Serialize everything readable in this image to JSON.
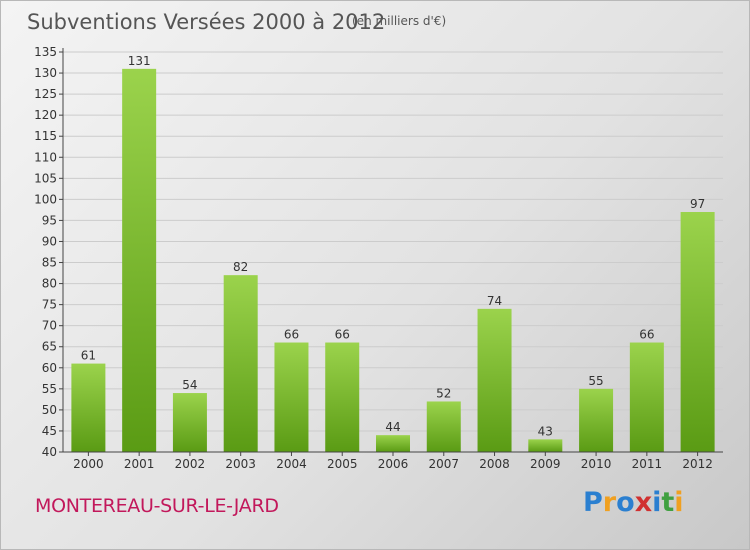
{
  "title": "Subventions Versées 2000 à 2012",
  "unit_note": "(en milliers d'€)",
  "commune": "MONTEREAU-SUR-LE-JARD",
  "logo": {
    "letters": [
      "P",
      "r",
      "o",
      "x",
      "i",
      "t",
      "i"
    ],
    "colors": [
      "#2a7fd0",
      "#f0a020",
      "#2a7fd0",
      "#d03030",
      "#2a7fd0",
      "#40a040",
      "#f0a020"
    ]
  },
  "colors": {
    "bar_top": "#9bd34c",
    "bar_bottom": "#5a9b14",
    "axis": "#444444",
    "grid": "#cccccc"
  },
  "chart_data": {
    "type": "bar",
    "categories": [
      "2000",
      "2001",
      "2002",
      "2003",
      "2004",
      "2005",
      "2006",
      "2007",
      "2008",
      "2009",
      "2010",
      "2011",
      "2012"
    ],
    "values": [
      61,
      131,
      54,
      82,
      66,
      66,
      44,
      52,
      74,
      43,
      55,
      66,
      97
    ],
    "ylim": [
      40,
      135
    ],
    "yticks": [
      40,
      45,
      50,
      55,
      60,
      65,
      70,
      75,
      80,
      85,
      90,
      95,
      100,
      105,
      110,
      115,
      120,
      125,
      130,
      135
    ],
    "grid": true
  }
}
